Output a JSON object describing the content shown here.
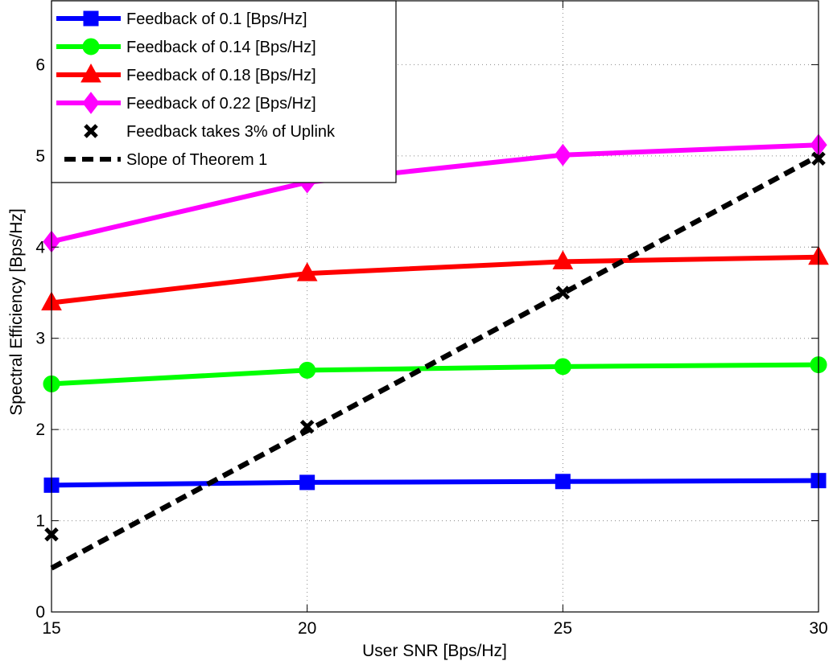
{
  "chart_data": {
    "type": "line",
    "title": "",
    "xlabel": "User SNR [Bps/Hz]",
    "ylabel": "Spectral Efficiency [Bps/Hz]",
    "xlim": [
      15,
      30
    ],
    "ylim": [
      0,
      6.7
    ],
    "xticks": [
      15,
      20,
      25,
      30
    ],
    "yticks": [
      0,
      1,
      2,
      3,
      4,
      5,
      6
    ],
    "grid": true,
    "legend_position": "top-left",
    "x": [
      15,
      20,
      25,
      30
    ],
    "series": [
      {
        "name": "Feedback of 0.1 [Bps/Hz]",
        "values": [
          1.39,
          1.42,
          1.43,
          1.44
        ],
        "color": "#0000ff",
        "marker": "square",
        "style": "solid"
      },
      {
        "name": "Feedback of 0.14 [Bps/Hz]",
        "values": [
          2.5,
          2.65,
          2.69,
          2.71
        ],
        "color": "#00ff00",
        "marker": "circle",
        "style": "solid"
      },
      {
        "name": "Feedback of 0.18 [Bps/Hz]",
        "values": [
          3.39,
          3.71,
          3.84,
          3.89
        ],
        "color": "#ff0000",
        "marker": "triangle",
        "style": "solid"
      },
      {
        "name": "Feedback of 0.22 [Bps/Hz]",
        "values": [
          4.06,
          4.71,
          5.01,
          5.12
        ],
        "color": "#ff00ff",
        "marker": "diamond",
        "style": "solid"
      },
      {
        "name": "Feedback takes 3% of Uplink",
        "values": [
          0.85,
          2.03,
          3.5,
          4.97
        ],
        "color": "#000000",
        "marker": "x",
        "style": "none"
      },
      {
        "name": "Slope of Theorem 1",
        "x": [
          15,
          30
        ],
        "values": [
          0.48,
          5.0
        ],
        "color": "#000000",
        "marker": "none",
        "style": "dashed"
      }
    ]
  }
}
